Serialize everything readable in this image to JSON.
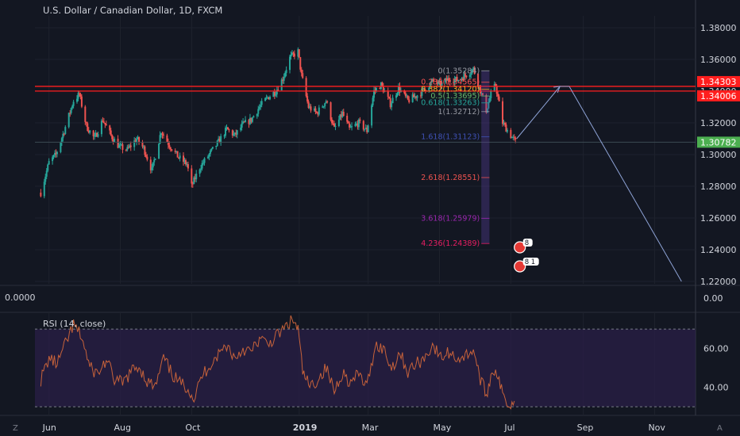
{
  "header": {
    "title": "U.S. Dollar / Canadian Dollar, 1D, FXCM"
  },
  "left_readout": "0.0000",
  "corner_labels": {
    "left": "Z",
    "right": "A"
  },
  "colors": {
    "background": "#131722",
    "up": "#26a69a",
    "down": "#ef5350",
    "resistance": "#ff1e1e",
    "rsi": "#c7623a",
    "rsi_band": "#2a1f47",
    "projection": "#8ea3d6"
  },
  "chart_data": [
    {
      "type": "candlestick",
      "title": "U.S. Dollar / Canadian Dollar, 1D, FXCM",
      "ylim": [
        1.2185,
        1.3875
      ],
      "y_ticks": [
        "1.38000",
        "1.36000",
        "1.34000",
        "1.32000",
        "1.30000",
        "1.28000",
        "1.26000",
        "1.24000",
        "1.22000"
      ],
      "x_ticks": [
        "Jun",
        "Aug",
        "Oct",
        "2019",
        "Mar",
        "May",
        "Jul",
        "Sep",
        "Nov"
      ],
      "price_labels": [
        {
          "text": "1.34303",
          "value": 1.34303,
          "color": "#ff1e1e"
        },
        {
          "text": "1.34006",
          "value": 1.34006,
          "color": "#ff1e1e"
        },
        {
          "text": "1.30782",
          "value": 1.30782,
          "color": "#4caf50"
        }
      ],
      "resistance_levels": [
        1.34303,
        1.34006
      ],
      "fibonacci": [
        {
          "label": "0(1.35284)",
          "value": 1.35284,
          "color": "#9598a1"
        },
        {
          "label": "0.236(1.34565)",
          "value": 1.34565,
          "color": "#ff5252"
        },
        {
          "label": "0.382(1.34120)",
          "value": 1.3412,
          "color": "#ffa726"
        },
        {
          "label": "0.5(1.33695)",
          "value": 1.33695,
          "color": "#66bb6a"
        },
        {
          "label": "0.618(1.33263)",
          "value": 1.33263,
          "color": "#26a69a"
        },
        {
          "label": "1(1.32712)",
          "value": 1.32712,
          "color": "#9598a1"
        },
        {
          "label": "1.618(1.31123)",
          "value": 1.31123,
          "color": "#3f51b5"
        },
        {
          "label": "2.618(1.28551)",
          "value": 1.28551,
          "color": "#ef5350"
        },
        {
          "label": "3.618(1.25979)",
          "value": 1.25979,
          "color": "#9c27b0"
        },
        {
          "label": "4.236(1.24389)",
          "value": 1.24389,
          "color": "#e91e63"
        }
      ],
      "price_path": [
        {
          "date": "2018-05-25",
          "price": 1.276
        },
        {
          "date": "2018-06-01",
          "price": 1.295
        },
        {
          "date": "2018-06-07",
          "price": 1.3
        },
        {
          "date": "2018-06-14",
          "price": 1.315
        },
        {
          "date": "2018-06-22",
          "price": 1.334
        },
        {
          "date": "2018-06-27",
          "price": 1.338
        },
        {
          "date": "2018-07-03",
          "price": 1.318
        },
        {
          "date": "2018-07-10",
          "price": 1.31
        },
        {
          "date": "2018-07-17",
          "price": 1.322
        },
        {
          "date": "2018-07-24",
          "price": 1.312
        },
        {
          "date": "2018-07-31",
          "price": 1.305
        },
        {
          "date": "2018-08-07",
          "price": 1.303
        },
        {
          "date": "2018-08-15",
          "price": 1.31
        },
        {
          "date": "2018-08-21",
          "price": 1.304
        },
        {
          "date": "2018-08-28",
          "price": 1.29
        },
        {
          "date": "2018-09-05",
          "price": 1.315
        },
        {
          "date": "2018-09-12",
          "price": 1.306
        },
        {
          "date": "2018-09-20",
          "price": 1.298
        },
        {
          "date": "2018-09-27",
          "price": 1.294
        },
        {
          "date": "2018-10-01",
          "price": 1.28
        },
        {
          "date": "2018-10-08",
          "price": 1.292
        },
        {
          "date": "2018-10-16",
          "price": 1.3
        },
        {
          "date": "2018-10-24",
          "price": 1.308
        },
        {
          "date": "2018-10-31",
          "price": 1.316
        },
        {
          "date": "2018-11-07",
          "price": 1.312
        },
        {
          "date": "2018-11-14",
          "price": 1.319
        },
        {
          "date": "2018-11-21",
          "price": 1.322
        },
        {
          "date": "2018-11-28",
          "price": 1.33
        },
        {
          "date": "2018-12-05",
          "price": 1.336
        },
        {
          "date": "2018-12-12",
          "price": 1.34
        },
        {
          "date": "2018-12-18",
          "price": 1.348
        },
        {
          "date": "2018-12-24",
          "price": 1.361
        },
        {
          "date": "2018-12-31",
          "price": 1.365
        },
        {
          "date": "2019-01-03",
          "price": 1.35
        },
        {
          "date": "2019-01-09",
          "price": 1.33
        },
        {
          "date": "2019-01-16",
          "price": 1.326
        },
        {
          "date": "2019-01-24",
          "price": 1.334
        },
        {
          "date": "2019-01-31",
          "price": 1.316
        },
        {
          "date": "2019-02-07",
          "price": 1.326
        },
        {
          "date": "2019-02-13",
          "price": 1.316
        },
        {
          "date": "2019-02-21",
          "price": 1.32
        },
        {
          "date": "2019-02-28",
          "price": 1.315
        },
        {
          "date": "2019-03-06",
          "price": 1.34
        },
        {
          "date": "2019-03-12",
          "price": 1.344
        },
        {
          "date": "2019-03-20",
          "price": 1.332
        },
        {
          "date": "2019-03-27",
          "price": 1.342
        },
        {
          "date": "2019-04-04",
          "price": 1.334
        },
        {
          "date": "2019-04-11",
          "price": 1.337
        },
        {
          "date": "2019-04-18",
          "price": 1.341
        },
        {
          "date": "2019-04-25",
          "price": 1.346
        },
        {
          "date": "2019-05-02",
          "price": 1.344
        },
        {
          "date": "2019-05-09",
          "price": 1.348
        },
        {
          "date": "2019-05-16",
          "price": 1.347
        },
        {
          "date": "2019-05-23",
          "price": 1.35
        },
        {
          "date": "2019-05-30",
          "price": 1.354
        },
        {
          "date": "2019-06-04",
          "price": 1.343
        },
        {
          "date": "2019-06-10",
          "price": 1.328
        },
        {
          "date": "2019-06-14",
          "price": 1.338
        },
        {
          "date": "2019-06-18",
          "price": 1.344
        },
        {
          "date": "2019-06-24",
          "price": 1.32
        },
        {
          "date": "2019-07-01",
          "price": 1.312
        },
        {
          "date": "2019-07-05",
          "price": 1.308
        }
      ],
      "projection_path": [
        {
          "date": "2019-07-06",
          "price": 1.31
        },
        {
          "date": "2019-08-12",
          "price": 1.343
        },
        {
          "date": "2019-08-20",
          "price": 1.343
        },
        {
          "date": "2019-11-24",
          "price": 1.22
        }
      ],
      "event_icons": [
        {
          "date": "2019-07-06",
          "label": "8"
        },
        {
          "date": "2019-07-06",
          "label": "8 1"
        }
      ]
    },
    {
      "type": "line",
      "title": "RSI (14, close)",
      "ylim": [
        28,
        77
      ],
      "y_ticks": [
        "60.00",
        "40.00"
      ],
      "band": [
        30,
        70
      ],
      "x_ticks": [
        "Jun",
        "Aug",
        "Oct",
        "2019",
        "Mar",
        "May",
        "Jul",
        "Sep",
        "Nov"
      ],
      "series": [
        {
          "x": "2018-05-25",
          "y": 44
        },
        {
          "x": "2018-06-01",
          "y": 55
        },
        {
          "x": "2018-06-08",
          "y": 52
        },
        {
          "x": "2018-06-15",
          "y": 62
        },
        {
          "x": "2018-06-22",
          "y": 72
        },
        {
          "x": "2018-06-29",
          "y": 66
        },
        {
          "x": "2018-07-06",
          "y": 50
        },
        {
          "x": "2018-07-13",
          "y": 47
        },
        {
          "x": "2018-07-20",
          "y": 54
        },
        {
          "x": "2018-07-27",
          "y": 44
        },
        {
          "x": "2018-08-03",
          "y": 42
        },
        {
          "x": "2018-08-10",
          "y": 48
        },
        {
          "x": "2018-08-17",
          "y": 51
        },
        {
          "x": "2018-08-24",
          "y": 43
        },
        {
          "x": "2018-08-31",
          "y": 40
        },
        {
          "x": "2018-09-07",
          "y": 55
        },
        {
          "x": "2018-09-14",
          "y": 47
        },
        {
          "x": "2018-09-21",
          "y": 42
        },
        {
          "x": "2018-09-28",
          "y": 40
        },
        {
          "x": "2018-10-03",
          "y": 34
        },
        {
          "x": "2018-10-10",
          "y": 46
        },
        {
          "x": "2018-10-17",
          "y": 52
        },
        {
          "x": "2018-10-24",
          "y": 57
        },
        {
          "x": "2018-10-31",
          "y": 62
        },
        {
          "x": "2018-11-07",
          "y": 55
        },
        {
          "x": "2018-11-14",
          "y": 60
        },
        {
          "x": "2018-11-21",
          "y": 58
        },
        {
          "x": "2018-11-28",
          "y": 65
        },
        {
          "x": "2018-12-05",
          "y": 62
        },
        {
          "x": "2018-12-12",
          "y": 66
        },
        {
          "x": "2018-12-19",
          "y": 70
        },
        {
          "x": "2018-12-26",
          "y": 75
        },
        {
          "x": "2018-12-31",
          "y": 70
        },
        {
          "x": "2019-01-04",
          "y": 48
        },
        {
          "x": "2019-01-10",
          "y": 40
        },
        {
          "x": "2019-01-17",
          "y": 44
        },
        {
          "x": "2019-01-24",
          "y": 50
        },
        {
          "x": "2019-01-31",
          "y": 38
        },
        {
          "x": "2019-02-07",
          "y": 48
        },
        {
          "x": "2019-02-14",
          "y": 42
        },
        {
          "x": "2019-02-21",
          "y": 47
        },
        {
          "x": "2019-02-28",
          "y": 40
        },
        {
          "x": "2019-03-07",
          "y": 62
        },
        {
          "x": "2019-03-14",
          "y": 60
        },
        {
          "x": "2019-03-21",
          "y": 50
        },
        {
          "x": "2019-03-28",
          "y": 58
        },
        {
          "x": "2019-04-04",
          "y": 48
        },
        {
          "x": "2019-04-11",
          "y": 52
        },
        {
          "x": "2019-04-18",
          "y": 55
        },
        {
          "x": "2019-04-25",
          "y": 62
        },
        {
          "x": "2019-05-02",
          "y": 55
        },
        {
          "x": "2019-05-09",
          "y": 58
        },
        {
          "x": "2019-05-16",
          "y": 55
        },
        {
          "x": "2019-05-23",
          "y": 56
        },
        {
          "x": "2019-05-30",
          "y": 60
        },
        {
          "x": "2019-06-04",
          "y": 46
        },
        {
          "x": "2019-06-10",
          "y": 36
        },
        {
          "x": "2019-06-14",
          "y": 46
        },
        {
          "x": "2019-06-18",
          "y": 50
        },
        {
          "x": "2019-06-24",
          "y": 36
        },
        {
          "x": "2019-07-01",
          "y": 30
        },
        {
          "x": "2019-07-05",
          "y": 34
        }
      ]
    }
  ]
}
